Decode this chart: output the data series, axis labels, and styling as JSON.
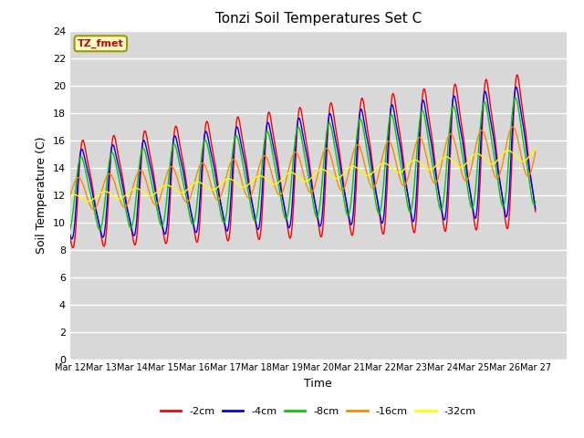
{
  "title": "Tonzi Soil Temperatures Set C",
  "xlabel": "Time",
  "ylabel": "Soil Temperature (C)",
  "ylim": [
    0,
    24
  ],
  "yticks": [
    0,
    2,
    4,
    6,
    8,
    10,
    12,
    14,
    16,
    18,
    20,
    22,
    24
  ],
  "legend_label": "TZ_fmet",
  "series_labels": [
    "-2cm",
    "-4cm",
    "-8cm",
    "-16cm",
    "-32cm"
  ],
  "series_colors": [
    "#ff0000",
    "#0000ff",
    "#00cc00",
    "#ff8800",
    "#ffff00"
  ],
  "plot_bg_color": "#d8d8d8",
  "fig_bg_color": "#ffffff",
  "grid_color": "#ffffff",
  "start_day": 12,
  "end_day": 27,
  "xtick_days": [
    12,
    13,
    14,
    15,
    16,
    17,
    18,
    19,
    20,
    21,
    22,
    23,
    24,
    25,
    26,
    27
  ]
}
